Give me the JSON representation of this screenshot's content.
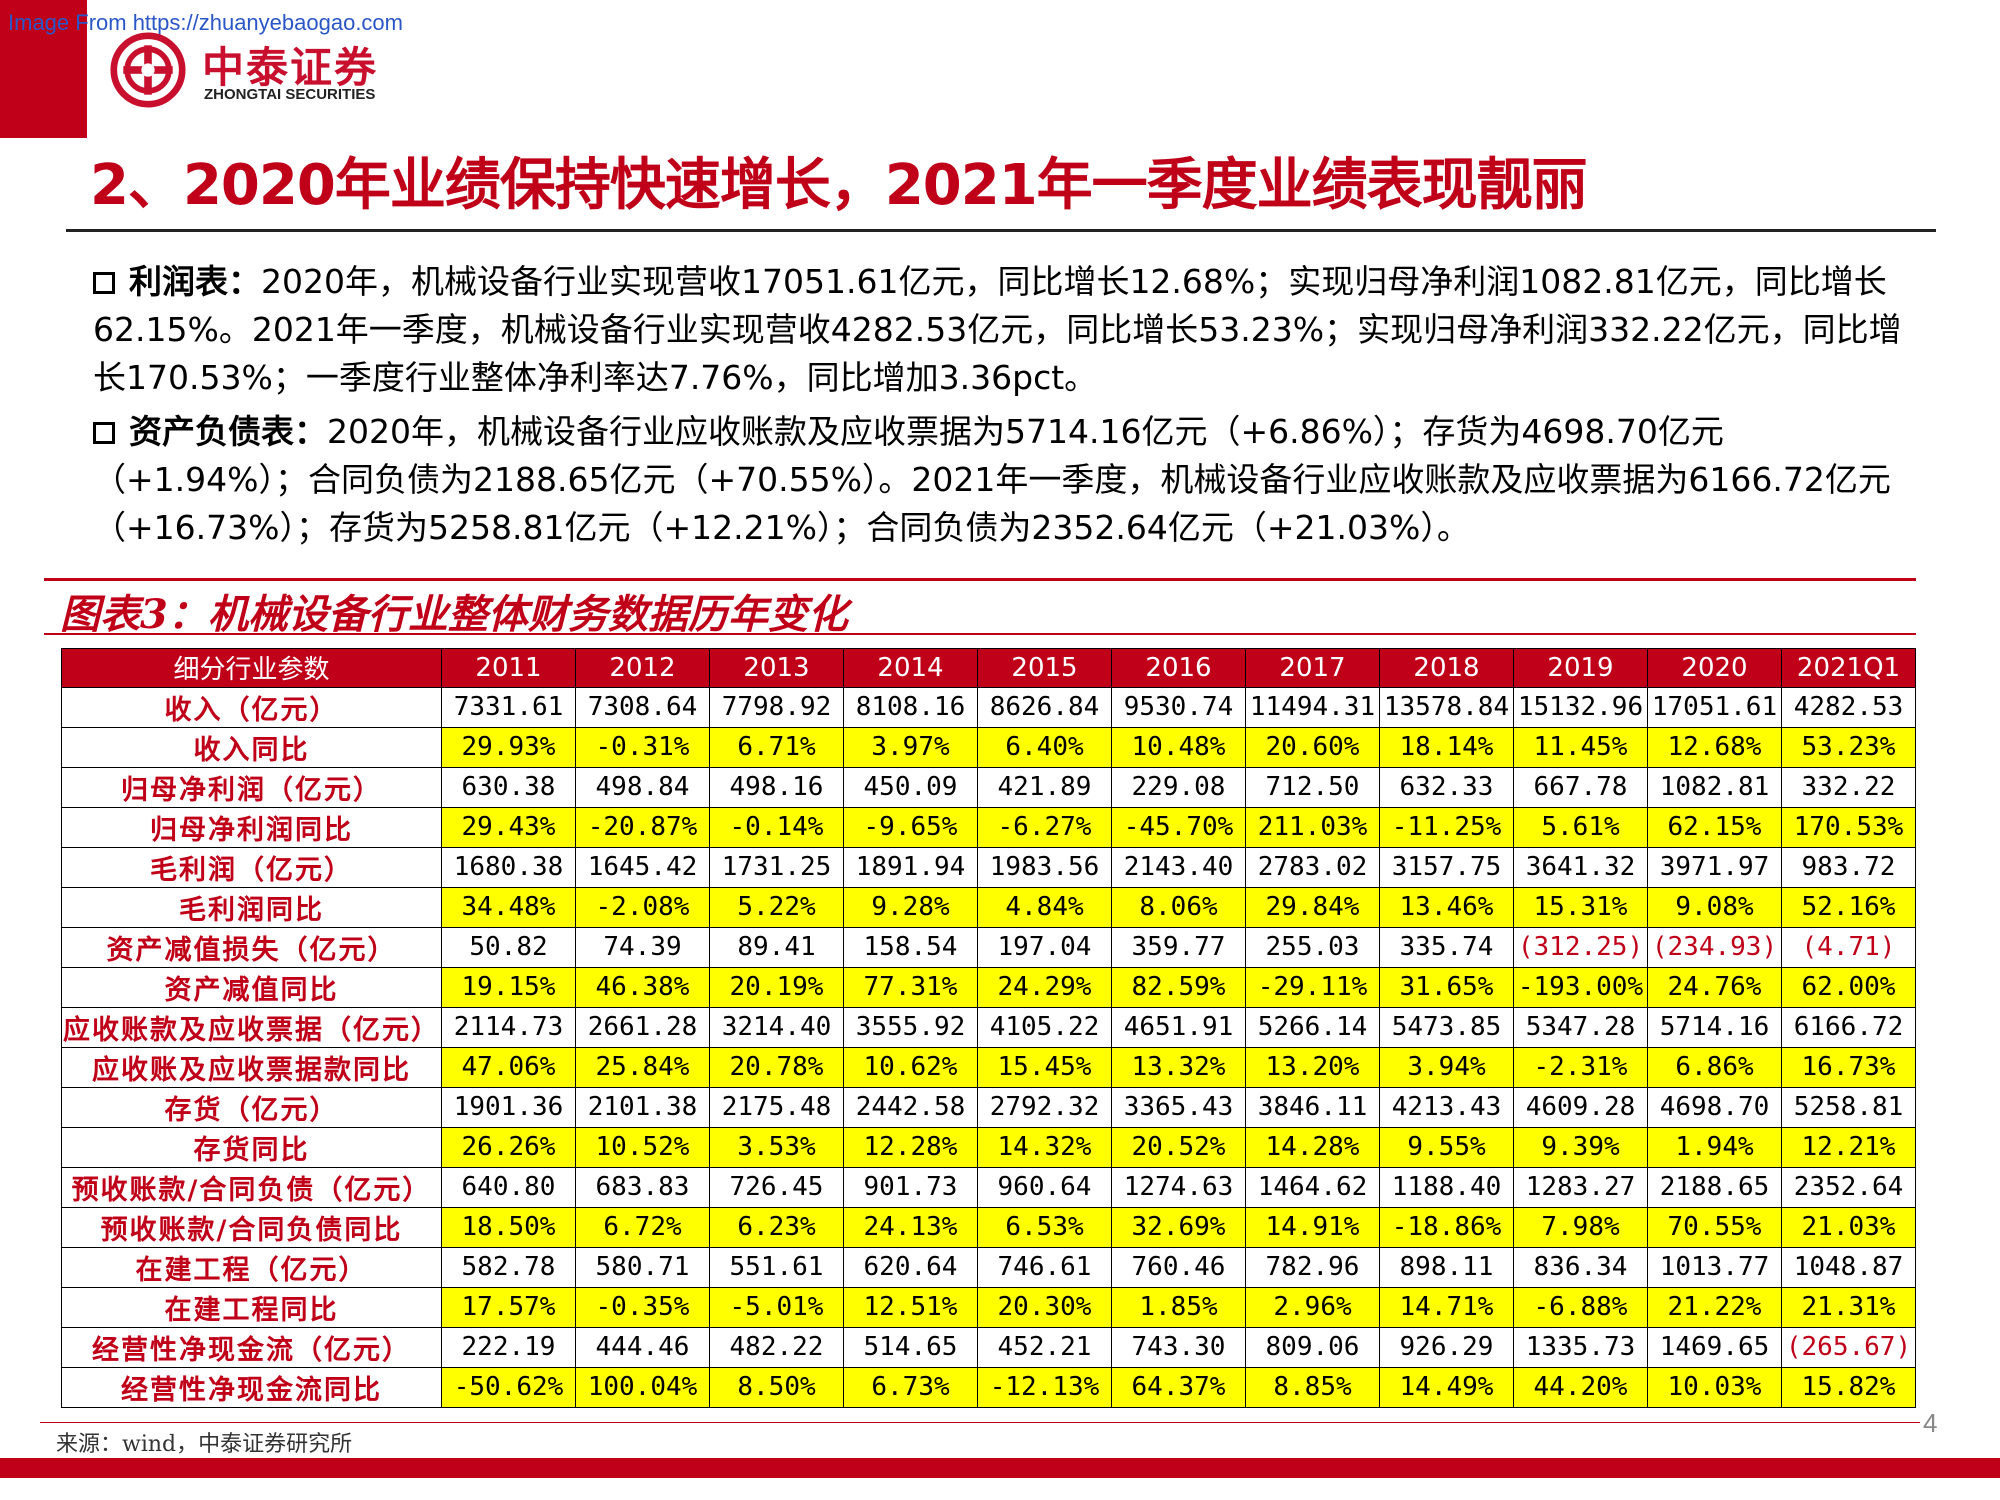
{
  "watermark": "Image From https://zhuanyebaogao.com",
  "logo": {
    "cn": "中泰证券",
    "en": "ZHONGTAI SECURITIES"
  },
  "title": "2、2020年业绩保持快速增长，2021年一季度业绩表现靓丽",
  "paragraphs": {
    "p1": {
      "lead": "利润表：",
      "text": "2020年，机械设备行业实现营收17051.61亿元，同比增长12.68%；实现归母净利润1082.81亿元，同比增长62.15%。2021年一季度，机械设备行业实现营收4282.53亿元，同比增长53.23%；实现归母净利润332.22亿元，同比增长170.53%；一季度行业整体净利率达7.76%，同比增加3.36pct。"
    },
    "p2": {
      "lead": "资产负债表：",
      "text": "2020年，机械设备行业应收账款及应收票据为5714.16亿元（+6.86%）；存货为4698.70亿元（+1.94%）；合同负债为2188.65亿元（+70.55%）。2021年一季度，机械设备行业应收账款及应收票据为6166.72亿元（+16.73%）；存货为5258.81亿元（+12.21%）；合同负债为2352.64亿元（+21.03%）。"
    }
  },
  "figure_title": "图表3：机械设备行业整体财务数据历年变化",
  "colors": {
    "brand_red": "#c00019",
    "highlight_yellow": "#ffff00"
  },
  "chart_data": {
    "type": "table",
    "headers": [
      "细分行业参数",
      "2011",
      "2012",
      "2013",
      "2014",
      "2015",
      "2016",
      "2017",
      "2018",
      "2019",
      "2020",
      "2021Q1"
    ],
    "rows": [
      {
        "label": "收入（亿元）",
        "kind": "value",
        "cells": [
          "7331.61",
          "7308.64",
          "7798.92",
          "8108.16",
          "8626.84",
          "9530.74",
          "11494.31",
          "13578.84",
          "15132.96",
          "17051.61",
          "4282.53"
        ]
      },
      {
        "label": "收入同比",
        "kind": "pct",
        "cells": [
          "29.93%",
          "-0.31%",
          "6.71%",
          "3.97%",
          "6.40%",
          "10.48%",
          "20.60%",
          "18.14%",
          "11.45%",
          "12.68%",
          "53.23%"
        ]
      },
      {
        "label": "归母净利润（亿元）",
        "kind": "value",
        "cells": [
          "630.38",
          "498.84",
          "498.16",
          "450.09",
          "421.89",
          "229.08",
          "712.50",
          "632.33",
          "667.78",
          "1082.81",
          "332.22"
        ]
      },
      {
        "label": "归母净利润同比",
        "kind": "pct",
        "cells": [
          "29.43%",
          "-20.87%",
          "-0.14%",
          "-9.65%",
          "-6.27%",
          "-45.70%",
          "211.03%",
          "-11.25%",
          "5.61%",
          "62.15%",
          "170.53%"
        ]
      },
      {
        "label": "毛利润（亿元）",
        "kind": "value",
        "cells": [
          "1680.38",
          "1645.42",
          "1731.25",
          "1891.94",
          "1983.56",
          "2143.40",
          "2783.02",
          "3157.75",
          "3641.32",
          "3971.97",
          "983.72"
        ]
      },
      {
        "label": "毛利润同比",
        "kind": "pct",
        "cells": [
          "34.48%",
          "-2.08%",
          "5.22%",
          "9.28%",
          "4.84%",
          "8.06%",
          "29.84%",
          "13.46%",
          "15.31%",
          "9.08%",
          "52.16%"
        ]
      },
      {
        "label": "资产减值损失（亿元）",
        "kind": "value",
        "cells": [
          "50.82",
          "74.39",
          "89.41",
          "158.54",
          "197.04",
          "359.77",
          "255.03",
          "335.74",
          "(312.25)",
          "(234.93)",
          "(4.71)"
        ]
      },
      {
        "label": "资产减值同比",
        "kind": "pct",
        "cells": [
          "19.15%",
          "46.38%",
          "20.19%",
          "77.31%",
          "24.29%",
          "82.59%",
          "-29.11%",
          "31.65%",
          "-193.00%",
          "24.76%",
          "62.00%"
        ]
      },
      {
        "label": "应收账款及应收票据（亿元）",
        "kind": "value",
        "cells": [
          "2114.73",
          "2661.28",
          "3214.40",
          "3555.92",
          "4105.22",
          "4651.91",
          "5266.14",
          "5473.85",
          "5347.28",
          "5714.16",
          "6166.72"
        ]
      },
      {
        "label": "应收账及应收票据款同比",
        "kind": "pct",
        "cells": [
          "47.06%",
          "25.84%",
          "20.78%",
          "10.62%",
          "15.45%",
          "13.32%",
          "13.20%",
          "3.94%",
          "-2.31%",
          "6.86%",
          "16.73%"
        ]
      },
      {
        "label": "存货（亿元）",
        "kind": "value",
        "cells": [
          "1901.36",
          "2101.38",
          "2175.48",
          "2442.58",
          "2792.32",
          "3365.43",
          "3846.11",
          "4213.43",
          "4609.28",
          "4698.70",
          "5258.81"
        ]
      },
      {
        "label": "存货同比",
        "kind": "pct",
        "cells": [
          "26.26%",
          "10.52%",
          "3.53%",
          "12.28%",
          "14.32%",
          "20.52%",
          "14.28%",
          "9.55%",
          "9.39%",
          "1.94%",
          "12.21%"
        ]
      },
      {
        "label": "预收账款/合同负债（亿元）",
        "kind": "value",
        "cells": [
          "640.80",
          "683.83",
          "726.45",
          "901.73",
          "960.64",
          "1274.63",
          "1464.62",
          "1188.40",
          "1283.27",
          "2188.65",
          "2352.64"
        ]
      },
      {
        "label": "预收账款/合同负债同比",
        "kind": "pct",
        "cells": [
          "18.50%",
          "6.72%",
          "6.23%",
          "24.13%",
          "6.53%",
          "32.69%",
          "14.91%",
          "-18.86%",
          "7.98%",
          "70.55%",
          "21.03%"
        ]
      },
      {
        "label": "在建工程（亿元）",
        "kind": "value",
        "cells": [
          "582.78",
          "580.71",
          "551.61",
          "620.64",
          "746.61",
          "760.46",
          "782.96",
          "898.11",
          "836.34",
          "1013.77",
          "1048.87"
        ]
      },
      {
        "label": "在建工程同比",
        "kind": "pct",
        "cells": [
          "17.57%",
          "-0.35%",
          "-5.01%",
          "12.51%",
          "20.30%",
          "1.85%",
          "2.96%",
          "14.71%",
          "-6.88%",
          "21.22%",
          "21.31%"
        ]
      },
      {
        "label": "经营性净现金流（亿元）",
        "kind": "value",
        "cells": [
          "222.19",
          "444.46",
          "482.22",
          "514.65",
          "452.21",
          "743.30",
          "809.06",
          "926.29",
          "1335.73",
          "1469.65",
          "(265.67)"
        ]
      },
      {
        "label": "经营性净现金流同比",
        "kind": "pct",
        "cells": [
          "-50.62%",
          "100.04%",
          "8.50%",
          "6.73%",
          "-12.13%",
          "64.37%",
          "8.85%",
          "14.49%",
          "44.20%",
          "10.03%",
          "15.82%"
        ]
      }
    ]
  },
  "page_number": "4",
  "source": "来源：wind，中泰证券研究所"
}
